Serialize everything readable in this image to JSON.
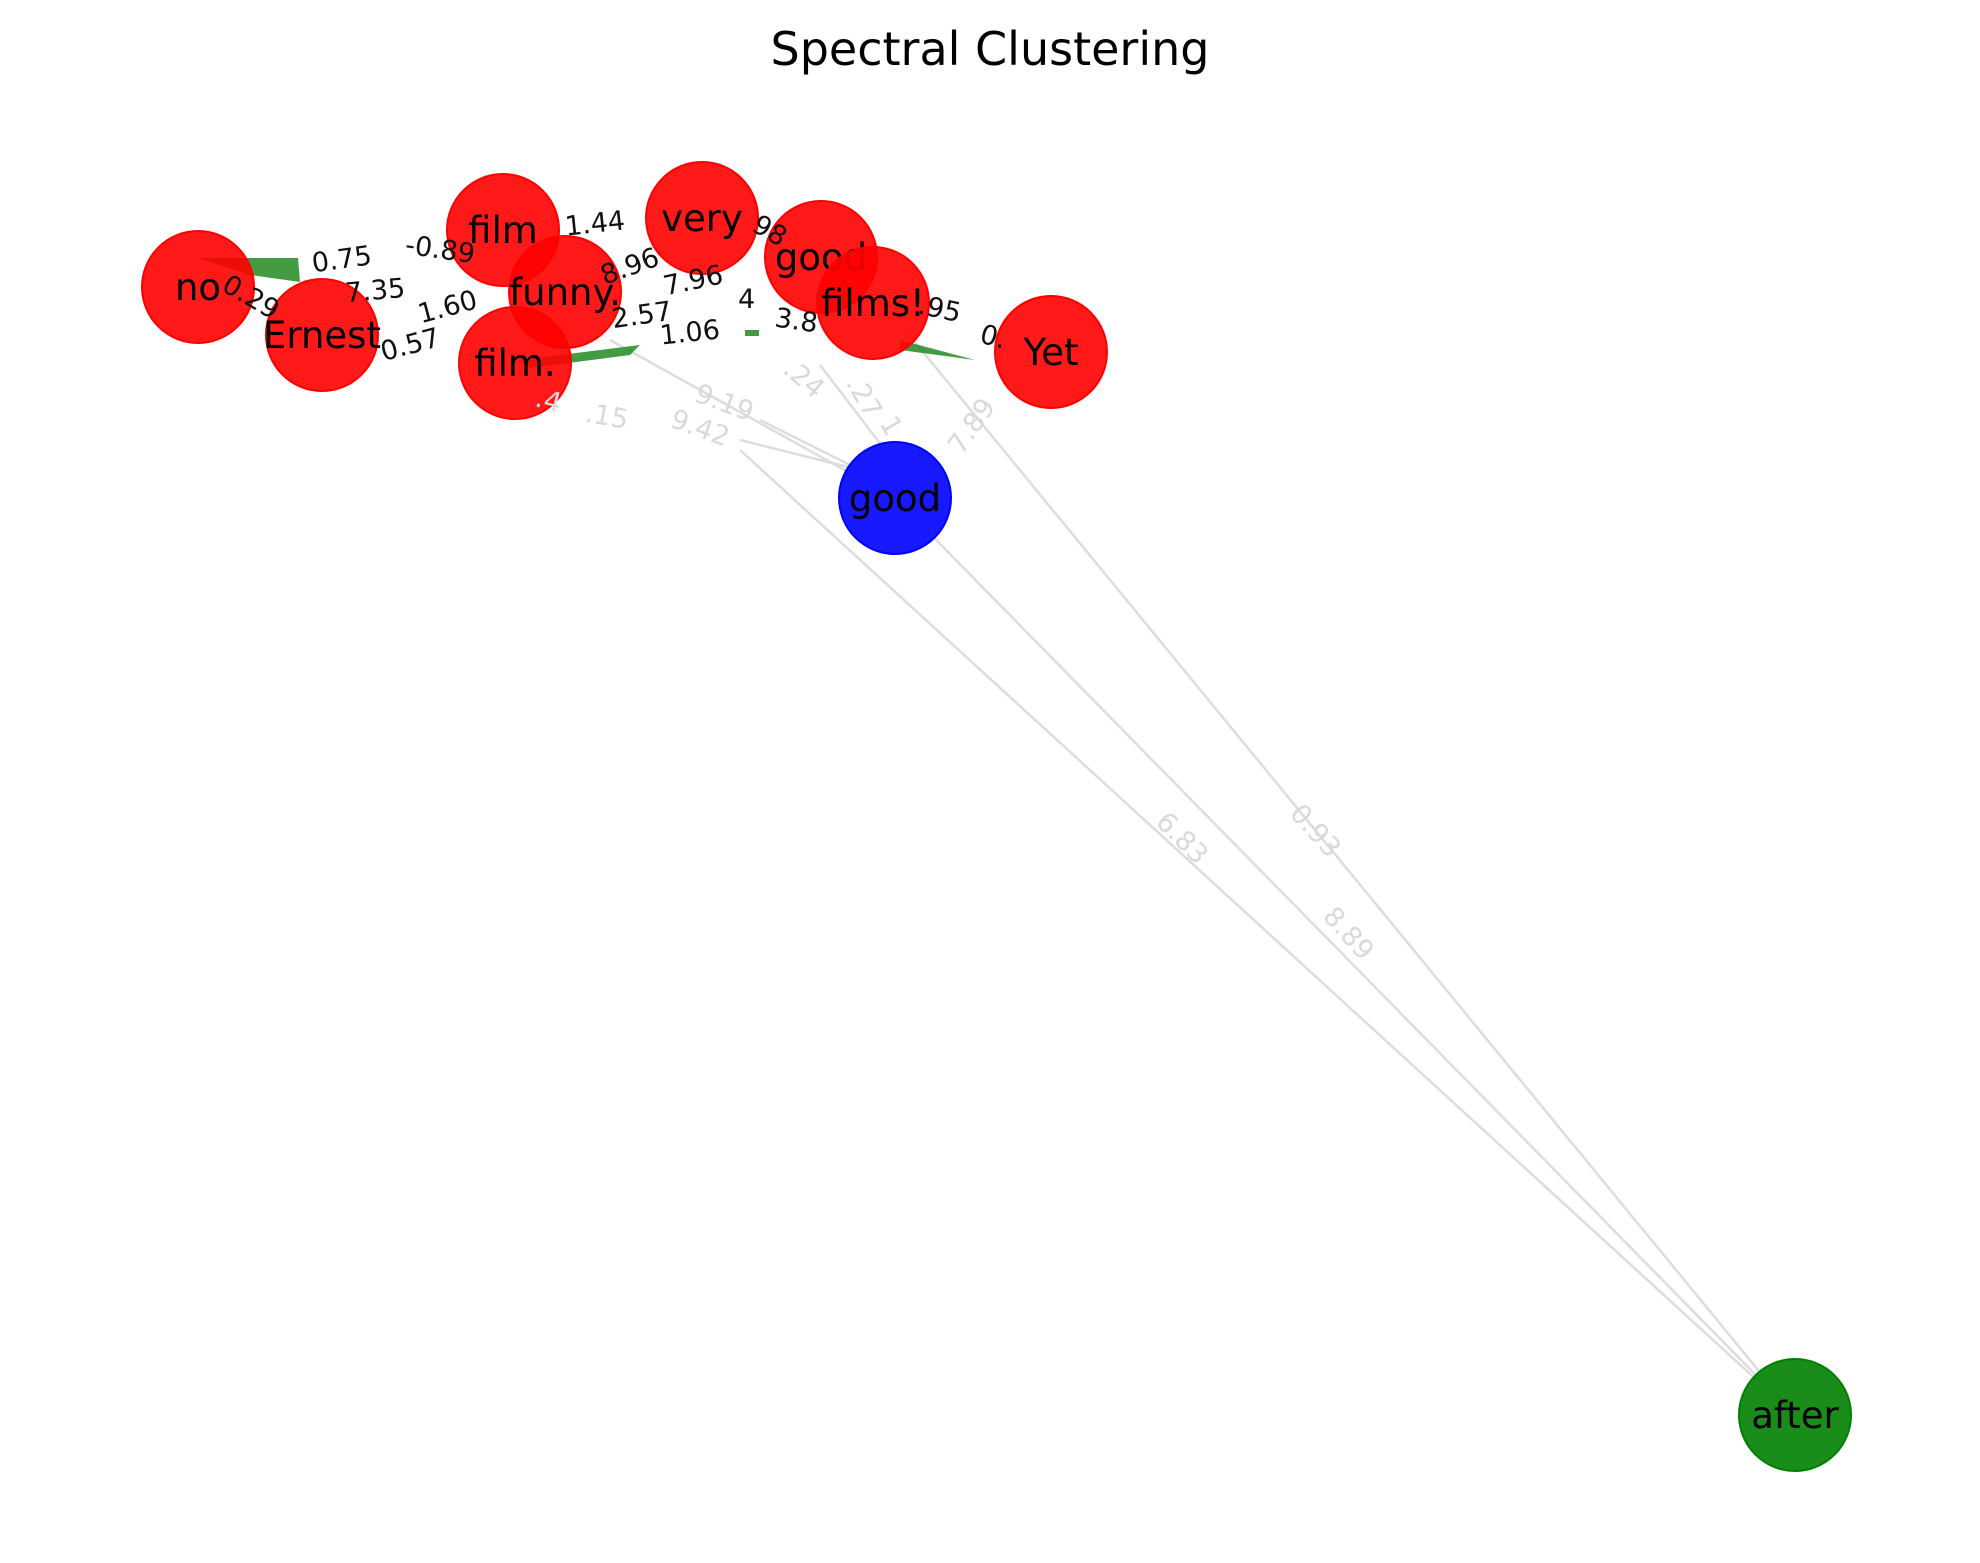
{
  "title": "Spectral Clustering",
  "colors": {
    "cluster_red": "#ff0000",
    "cluster_blue": "#0000ff",
    "cluster_green": "#008000",
    "edge_light": "#dddddd",
    "edge_green": "#228b22"
  },
  "nodes": [
    {
      "id": "no",
      "label": "no",
      "cluster": "red"
    },
    {
      "id": "Ernest",
      "label": "Ernest",
      "cluster": "red"
    },
    {
      "id": "film",
      "label": "film",
      "cluster": "red"
    },
    {
      "id": "funny",
      "label": "funny.",
      "cluster": "red"
    },
    {
      "id": "film_dot",
      "label": "film.",
      "cluster": "red"
    },
    {
      "id": "very",
      "label": "very",
      "cluster": "red"
    },
    {
      "id": "good_red",
      "label": "good",
      "cluster": "red"
    },
    {
      "id": "films",
      "label": "films!",
      "cluster": "red"
    },
    {
      "id": "Yet",
      "label": "Yet",
      "cluster": "red"
    },
    {
      "id": "good_blue",
      "label": "good",
      "cluster": "blue"
    },
    {
      "id": "after",
      "label": "after",
      "cluster": "green"
    }
  ],
  "dark_edge_labels": [
    "0.75",
    "-0.89",
    "7.35",
    "1.44",
    "8.96",
    "7.96",
    "4",
    "3.8",
    "1.60",
    "0.57",
    "1.06",
    "2.57",
    "0.29",
    ".95",
    "0.",
    "98"
  ],
  "light_edge_labels": [
    "9.19",
    "9.42",
    ".15",
    ".24",
    ".27",
    "7.89",
    "0.93",
    "6.83",
    "8.89",
    ".4",
    "1"
  ]
}
